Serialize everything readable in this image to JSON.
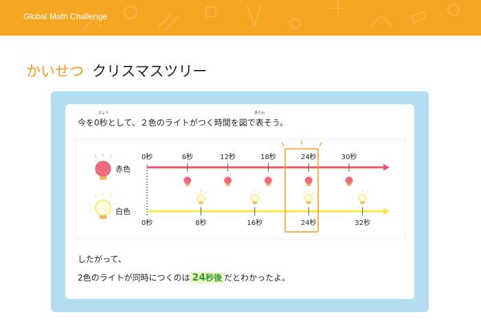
{
  "header": {
    "brand": "Global Math Challenge"
  },
  "title": {
    "accent": "かいせつ",
    "text": "クリスマスツリー"
  },
  "intro": {
    "before": "今を0",
    "sec_kanji": "秒",
    "sec_ruby": "びょう",
    "middle": "として、２色のライトがつく時間を図で",
    "show_kanji": "表",
    "show_ruby": "あらわ",
    "after": "そう。"
  },
  "diagram": {
    "red": {
      "label": "赤色",
      "ticks": [
        "0秒",
        "6秒",
        "12秒",
        "18秒",
        "24秒",
        "30秒"
      ],
      "color": "#e8576e"
    },
    "white": {
      "label": "白色",
      "ticks": [
        "0秒",
        "8秒",
        "16秒",
        "24秒",
        "32秒"
      ],
      "color": "#f4e84a"
    },
    "highlight_color": "#f39a1e"
  },
  "conclusion": {
    "line1": "したがって、",
    "before": "2色のライトが同時につくのは",
    "answer_num": "24",
    "answer_unit": "秒後",
    "after": "だとわかったよ。"
  }
}
